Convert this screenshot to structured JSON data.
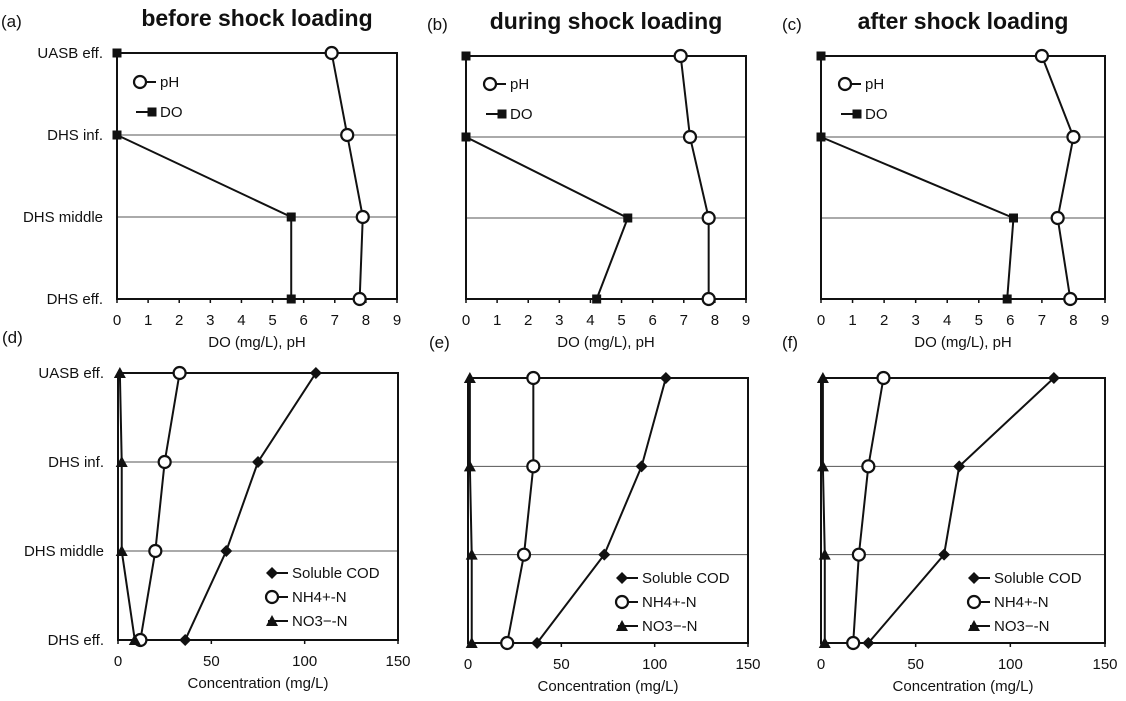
{
  "chart_data": [
    {
      "panel_label": "(a)",
      "title": "before shock loading",
      "type": "line",
      "xlabel": "DO (mg/L),  pH",
      "xlim": [
        0,
        9
      ],
      "xticks": [
        "0",
        "1",
        "2",
        "3",
        "4",
        "5",
        "6",
        "7",
        "8",
        "9"
      ],
      "categories": [
        "UASB eff.",
        "DHS inf.",
        "DHS middle",
        "DHS eff."
      ],
      "legend": "top-left",
      "series": [
        {
          "name": "pH",
          "marker": "open-circle",
          "values": [
            6.9,
            7.4,
            7.9,
            7.8
          ]
        },
        {
          "name": "DO",
          "marker": "filled-square",
          "values": [
            0,
            0,
            5.6,
            5.6
          ]
        }
      ]
    },
    {
      "panel_label": "(b)",
      "title": "during shock loading",
      "type": "line",
      "xlabel": "DO (mg/L),  pH",
      "xlim": [
        0,
        9
      ],
      "xticks": [
        "0",
        "1",
        "2",
        "3",
        "4",
        "5",
        "6",
        "7",
        "8",
        "9"
      ],
      "categories": [
        "UASB eff.",
        "DHS inf.",
        "DHS middle",
        "DHS eff."
      ],
      "legend": "top-left",
      "series": [
        {
          "name": "pH",
          "marker": "open-circle",
          "values": [
            6.9,
            7.2,
            7.8,
            7.8
          ]
        },
        {
          "name": "DO",
          "marker": "filled-square",
          "values": [
            0,
            0,
            5.2,
            4.2
          ]
        }
      ]
    },
    {
      "panel_label": "(c)",
      "title": "after shock loading",
      "type": "line",
      "xlabel": "DO (mg/L),  pH",
      "xlim": [
        0,
        9
      ],
      "xticks": [
        "0",
        "1",
        "2",
        "3",
        "4",
        "5",
        "6",
        "7",
        "8",
        "9"
      ],
      "categories": [
        "UASB eff.",
        "DHS inf.",
        "DHS middle",
        "DHS eff."
      ],
      "legend": "top-left",
      "series": [
        {
          "name": "pH",
          "marker": "open-circle",
          "values": [
            7.0,
            8.0,
            7.5,
            7.9
          ]
        },
        {
          "name": "DO",
          "marker": "filled-square",
          "values": [
            0,
            0,
            6.1,
            5.9
          ]
        }
      ]
    },
    {
      "panel_label": "(d)",
      "title": "",
      "type": "line",
      "xlabel": "Concentration (mg/L)",
      "xlim": [
        0,
        150
      ],
      "xticks": [
        "0",
        "50",
        "100",
        "150"
      ],
      "categories": [
        "UASB eff.",
        "DHS inf.",
        "DHS middle",
        "DHS eff."
      ],
      "legend": "bottom-right",
      "series": [
        {
          "name": "Soluble COD",
          "marker": "filled-diamond",
          "values": [
            106,
            75,
            58,
            36
          ]
        },
        {
          "name": "NH4+-N",
          "marker": "open-circle",
          "values": [
            33,
            25,
            20,
            12
          ]
        },
        {
          "name": "NO3−-N",
          "marker": "filled-triangle",
          "values": [
            1,
            2,
            2,
            9
          ]
        }
      ]
    },
    {
      "panel_label": "(e)",
      "title": "",
      "type": "line",
      "xlabel": "Concentration (mg/L)",
      "xlim": [
        0,
        150
      ],
      "xticks": [
        "0",
        "50",
        "100",
        "150"
      ],
      "categories": [
        "UASB eff.",
        "DHS inf.",
        "DHS middle",
        "DHS eff."
      ],
      "legend": "bottom-right",
      "series": [
        {
          "name": "Soluble COD",
          "marker": "filled-diamond",
          "values": [
            106,
            93,
            73,
            37
          ]
        },
        {
          "name": "NH4+-N",
          "marker": "open-circle",
          "values": [
            35,
            35,
            30,
            21
          ]
        },
        {
          "name": "NO3−-N",
          "marker": "filled-triangle",
          "values": [
            1,
            1,
            2,
            2
          ]
        }
      ]
    },
    {
      "panel_label": "(f)",
      "title": "",
      "type": "line",
      "xlabel": "Concentration (mg/L)",
      "xlim": [
        0,
        150
      ],
      "xticks": [
        "0",
        "50",
        "100",
        "150"
      ],
      "categories": [
        "UASB eff.",
        "DHS inf.",
        "DHS middle",
        "DHS eff."
      ],
      "legend": "bottom-right",
      "series": [
        {
          "name": "Soluble COD",
          "marker": "filled-diamond",
          "values": [
            123,
            73,
            65,
            25
          ]
        },
        {
          "name": "NH4+-N",
          "marker": "open-circle",
          "values": [
            33,
            25,
            20,
            17
          ]
        },
        {
          "name": "NO3−-N",
          "marker": "filled-triangle",
          "values": [
            1,
            1,
            2,
            2
          ]
        }
      ]
    }
  ]
}
